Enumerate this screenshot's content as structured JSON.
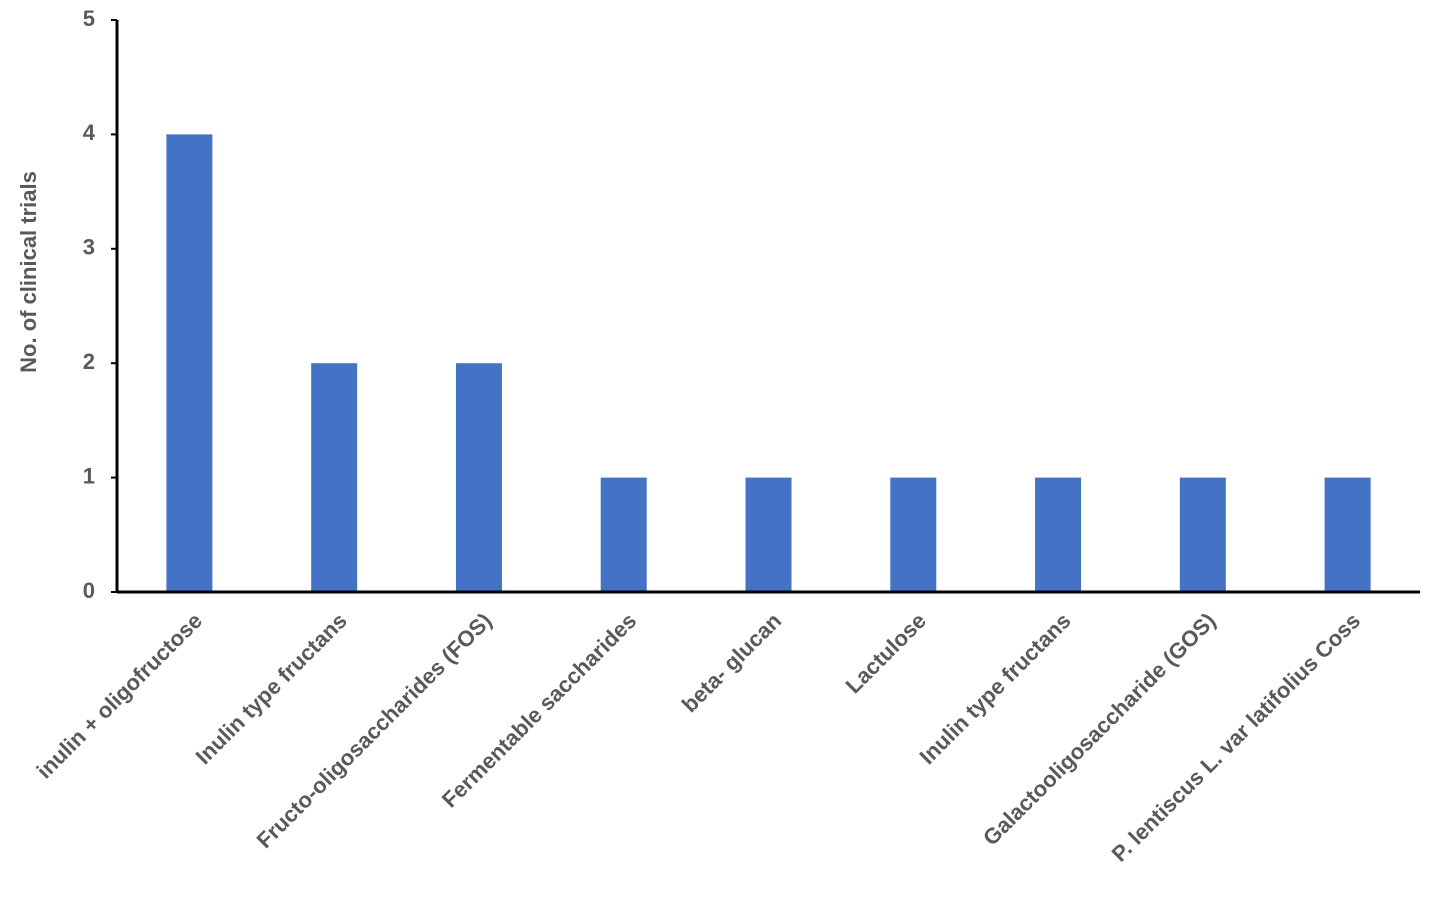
{
  "chart_data": {
    "type": "bar",
    "y_label": "No. of clinical trials",
    "categories": [
      "inulin + oligofructose",
      "Inulin type fructans",
      "Fructo-oligosaccharides (FOS)",
      "Fermentable saccharides",
      "beta- glucan",
      "Lactulose",
      "Inulin type fructans",
      "Galactooligosaccharide (GOS)",
      "P. lentiscus L. var latifolius Coss"
    ],
    "values": [
      4,
      2,
      2,
      1,
      1,
      1,
      1,
      1,
      1
    ],
    "color": "#4472c4",
    "ylim": [
      0,
      5
    ],
    "yticks": [
      0,
      1,
      2,
      3,
      4,
      5
    ],
    "grid": false
  }
}
